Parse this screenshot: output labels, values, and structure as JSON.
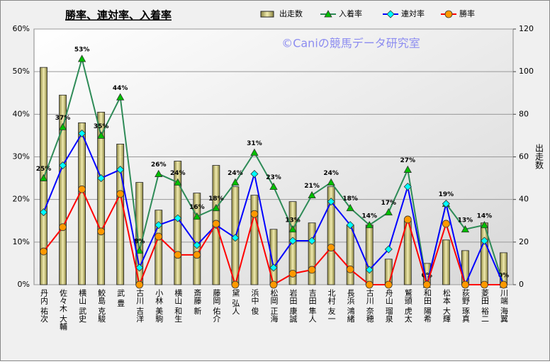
{
  "chart_data": {
    "type": "bar-line",
    "title": "勝率、連対率、入着率",
    "watermark": "©Caniの競馬データ研究室",
    "y2label": "出走数",
    "categories": [
      "丹内 祐次",
      "佐々木 大輔",
      "横山 武史",
      "鮫島 克駿",
      "武 豊",
      "古川 吉洋",
      "小林 美駒",
      "横山 和生",
      "斎藤 新",
      "藤岡 佑介",
      "黛 弘人",
      "浜中 俊",
      "松岡 正海",
      "岩田 康誠",
      "吉田 隼人",
      "北村 友一",
      "長浜 鴻緒",
      "古川 奈穂",
      "舟山 瑠泉",
      "鷲頭 虎太",
      "和田 陽希",
      "松本 大輝",
      "荻野 琢真",
      "菱田 裕二",
      "川端 海翼"
    ],
    "series": [
      {
        "name": "出走数",
        "kind": "bar",
        "axis": "y2",
        "color": "#c9c070",
        "values": [
          102,
          89,
          76,
          81,
          66,
          48,
          35,
          58,
          43,
          56,
          46,
          42,
          26,
          39,
          29,
          46,
          28,
          28,
          12,
          30,
          10,
          21,
          16,
          29,
          15
        ]
      },
      {
        "name": "入着率",
        "kind": "line",
        "color": "#2e8b57",
        "marker_color": "#00c000",
        "marker": "triangle",
        "values": [
          25,
          37,
          53,
          35,
          44,
          8,
          26,
          24,
          16,
          18,
          24,
          31,
          23,
          13,
          21,
          24,
          18,
          14,
          17,
          27,
          0,
          19,
          13,
          14,
          0
        ],
        "value_labels": [
          "25%",
          "37%",
          "53%",
          "35%",
          "44%",
          "8%",
          "26%",
          "24%",
          "16%",
          "18%",
          "24%",
          "31%",
          "23%",
          "13%",
          "21%",
          "24%",
          "18%",
          "14%",
          "17%",
          "27%",
          "0%",
          "19%",
          "13%",
          "14%",
          "0%"
        ]
      },
      {
        "name": "連対率",
        "kind": "line",
        "color": "#0000ff",
        "marker_color": "#00ffff",
        "marker": "diamond",
        "values": [
          17,
          28,
          35.5,
          25,
          27,
          4,
          14,
          15.6,
          9.3,
          14,
          11,
          26,
          4,
          10.3,
          10.3,
          19.5,
          14,
          3.5,
          8.3,
          23,
          0,
          19,
          0,
          10.3,
          0
        ]
      },
      {
        "name": "勝率",
        "kind": "line",
        "color": "#ff0000",
        "marker_color": "#ff9900",
        "marker": "circle",
        "values": [
          7.8,
          13.5,
          22.4,
          12.5,
          21.3,
          0,
          11.3,
          7,
          7,
          14.3,
          0,
          16.6,
          0,
          2.6,
          3.5,
          8.7,
          3.6,
          0,
          0,
          15.3,
          0,
          14.3,
          0,
          0,
          0
        ]
      }
    ],
    "ylim": [
      0,
      60
    ],
    "yticks": [
      {
        "value": 0,
        "label": "0%"
      },
      {
        "value": 10,
        "label": "10%"
      },
      {
        "value": 20,
        "label": "20%"
      },
      {
        "value": 30,
        "label": "30%"
      },
      {
        "value": 40,
        "label": "40%"
      },
      {
        "value": 50,
        "label": "50%"
      },
      {
        "value": 60,
        "label": "60%"
      }
    ],
    "y2lim": [
      0,
      120
    ],
    "y2ticks": [
      0,
      20,
      40,
      60,
      80,
      100,
      120
    ],
    "grid": true
  }
}
